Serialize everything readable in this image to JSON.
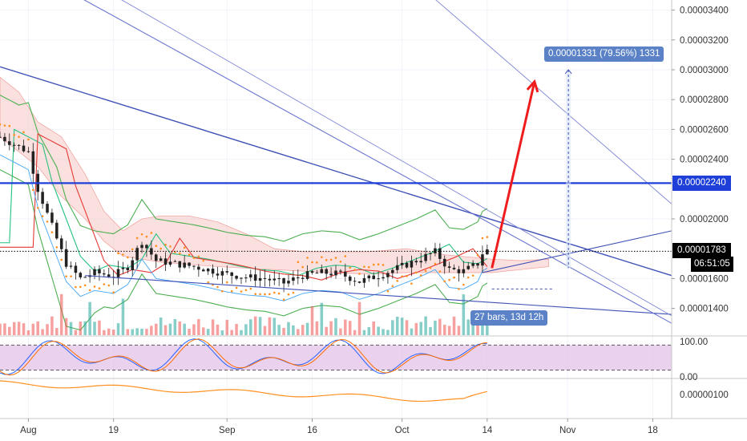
{
  "chart_data": {
    "type": "candlestick",
    "price_axis": {
      "ticks": [
        "0.00003400",
        "0.00003200",
        "0.00003000",
        "0.00002800",
        "0.00002600",
        "0.00002400",
        "0.00002000",
        "0.00001600",
        "0.00001400"
      ],
      "tick_values": [
        3.4e-05,
        3.2e-05,
        3e-05,
        2.8e-05,
        2.6e-05,
        2.4e-05,
        2e-05,
        1.6e-05,
        1.4e-05
      ],
      "range": [
        1.27e-05,
        3.5e-05
      ]
    },
    "date_axis": {
      "labels": [
        "Aug",
        "19",
        "Sep",
        "16",
        "Oct",
        "14",
        "Nov",
        "18"
      ],
      "bar_index": [
        0,
        18,
        42,
        60,
        79,
        97,
        114,
        132
      ],
      "visible_bars": [
        -6,
        136
      ]
    },
    "badges": {
      "horizontal_level": "0.00002240",
      "last_price": "0.00001783",
      "countdown": "06:51:05",
      "measure_label": "0.00001331 (79.56%) 1331",
      "bars_label": "27 bars, 13d 12h"
    },
    "oscillator": {
      "ticks": [
        "100.00",
        "0.00"
      ],
      "overbought": 80,
      "oversold": 20
    },
    "lower_indicator": {
      "ticks": [
        "0.00000100"
      ]
    },
    "colors": {
      "up": "#26a69a",
      "down": "#ef5350",
      "trendline": "#3f51b5",
      "level_line": "#1e3fd8",
      "arrow": "#ee1c1c",
      "cloud": "#f6c6c4",
      "badge_blue": "#5b82c6",
      "last_price_bg": "#000000"
    }
  }
}
